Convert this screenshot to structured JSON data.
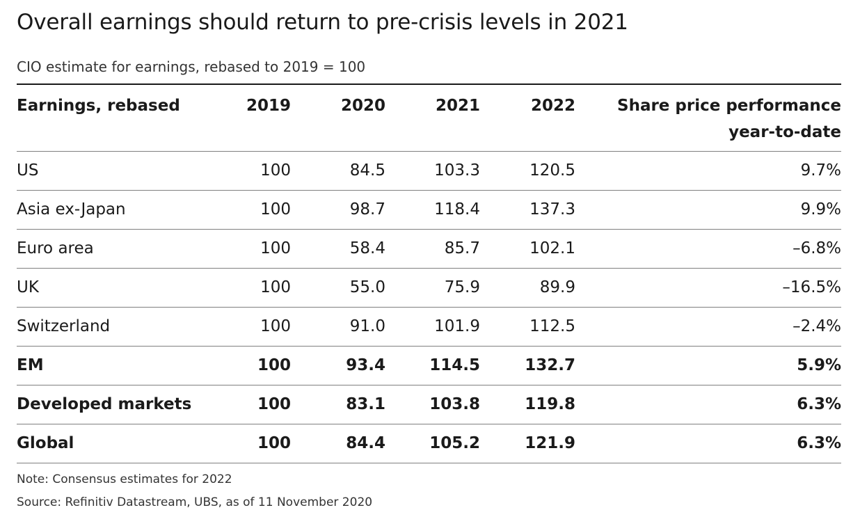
{
  "title": "Overall earnings should return to pre-crisis levels in 2021",
  "subtitle": "CIO estimate for earnings, rebased to 2019 = 100",
  "note": "Note: Consensus estimates for 2022",
  "source": "Source: Refinitiv Datastream, UBS, as of 11 November 2020",
  "chart_data": {
    "type": "table",
    "title": "Overall earnings should return to pre-crisis levels in 2021",
    "subtitle": "CIO estimate for earnings, rebased to 2019 = 100",
    "columns": [
      "Earnings, rebased",
      "2019",
      "2020",
      "2021",
      "2022",
      "Share price performance year-to-date"
    ],
    "perf_header_lines": [
      "Share price performance",
      "year-to-date"
    ],
    "rows": [
      {
        "label": "US",
        "y2019": "100",
        "y2020": "84.5",
        "y2021": "103.3",
        "y2022": "120.5",
        "perf": "9.7%",
        "bold": false
      },
      {
        "label": "Asia ex-Japan",
        "y2019": "100",
        "y2020": "98.7",
        "y2021": "118.4",
        "y2022": "137.3",
        "perf": "9.9%",
        "bold": false
      },
      {
        "label": "Euro area",
        "y2019": "100",
        "y2020": "58.4",
        "y2021": "85.7",
        "y2022": "102.1",
        "perf": "–6.8%",
        "bold": false
      },
      {
        "label": "UK",
        "y2019": "100",
        "y2020": "55.0",
        "y2021": "75.9",
        "y2022": "89.9",
        "perf": "–16.5%",
        "bold": false
      },
      {
        "label": "Switzerland",
        "y2019": "100",
        "y2020": "91.0",
        "y2021": "101.9",
        "y2022": "112.5",
        "perf": "–2.4%",
        "bold": false
      },
      {
        "label": "EM",
        "y2019": "100",
        "y2020": "93.4",
        "y2021": "114.5",
        "y2022": "132.7",
        "perf": "5.9%",
        "bold": true
      },
      {
        "label": "Developed markets",
        "y2019": "100",
        "y2020": "83.1",
        "y2021": "103.8",
        "y2022": "119.8",
        "perf": "6.3%",
        "bold": true
      },
      {
        "label": "Global",
        "y2019": "100",
        "y2020": "84.4",
        "y2021": "105.2",
        "y2022": "121.9",
        "perf": "6.3%",
        "bold": true
      }
    ]
  }
}
